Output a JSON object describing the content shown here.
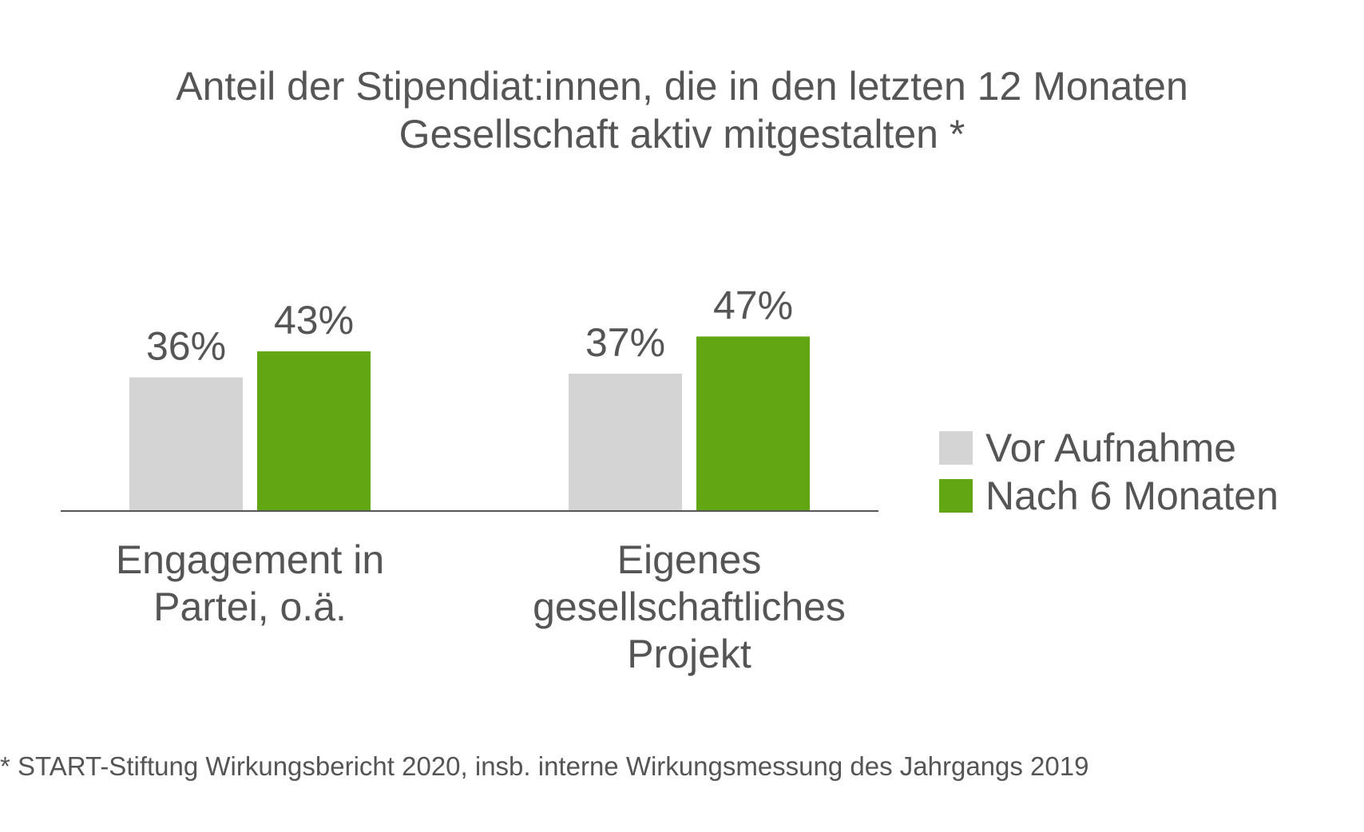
{
  "chart_data": {
    "type": "bar",
    "title_lines": [
      "Anteil der Stipendiat:innen, die in den letzten 12 Monaten",
      "Gesellschaft aktiv mitgestalten *"
    ],
    "categories": [
      [
        "Engagement in",
        "Partei, o.ä."
      ],
      [
        "Eigenes",
        "gesellschaftliches",
        "Projekt"
      ]
    ],
    "series": [
      {
        "name": "Vor Aufnahme",
        "values": [
          36,
          37
        ],
        "labels": [
          "36%",
          "37%"
        ],
        "color": "#d4d4d4"
      },
      {
        "name": "Nach 6 Monaten",
        "values": [
          43,
          47
        ],
        "labels": [
          "43%",
          "47%"
        ],
        "color": "#62a613"
      }
    ],
    "ylim": [
      0,
      100
    ],
    "unit": "%",
    "legend_position": "right",
    "grid": false,
    "axis_color": "#555555"
  },
  "footnote": "* START-Stiftung Wirkungsbericht 2020, insb. interne Wirkungsmessung des Jahrgangs 2019"
}
